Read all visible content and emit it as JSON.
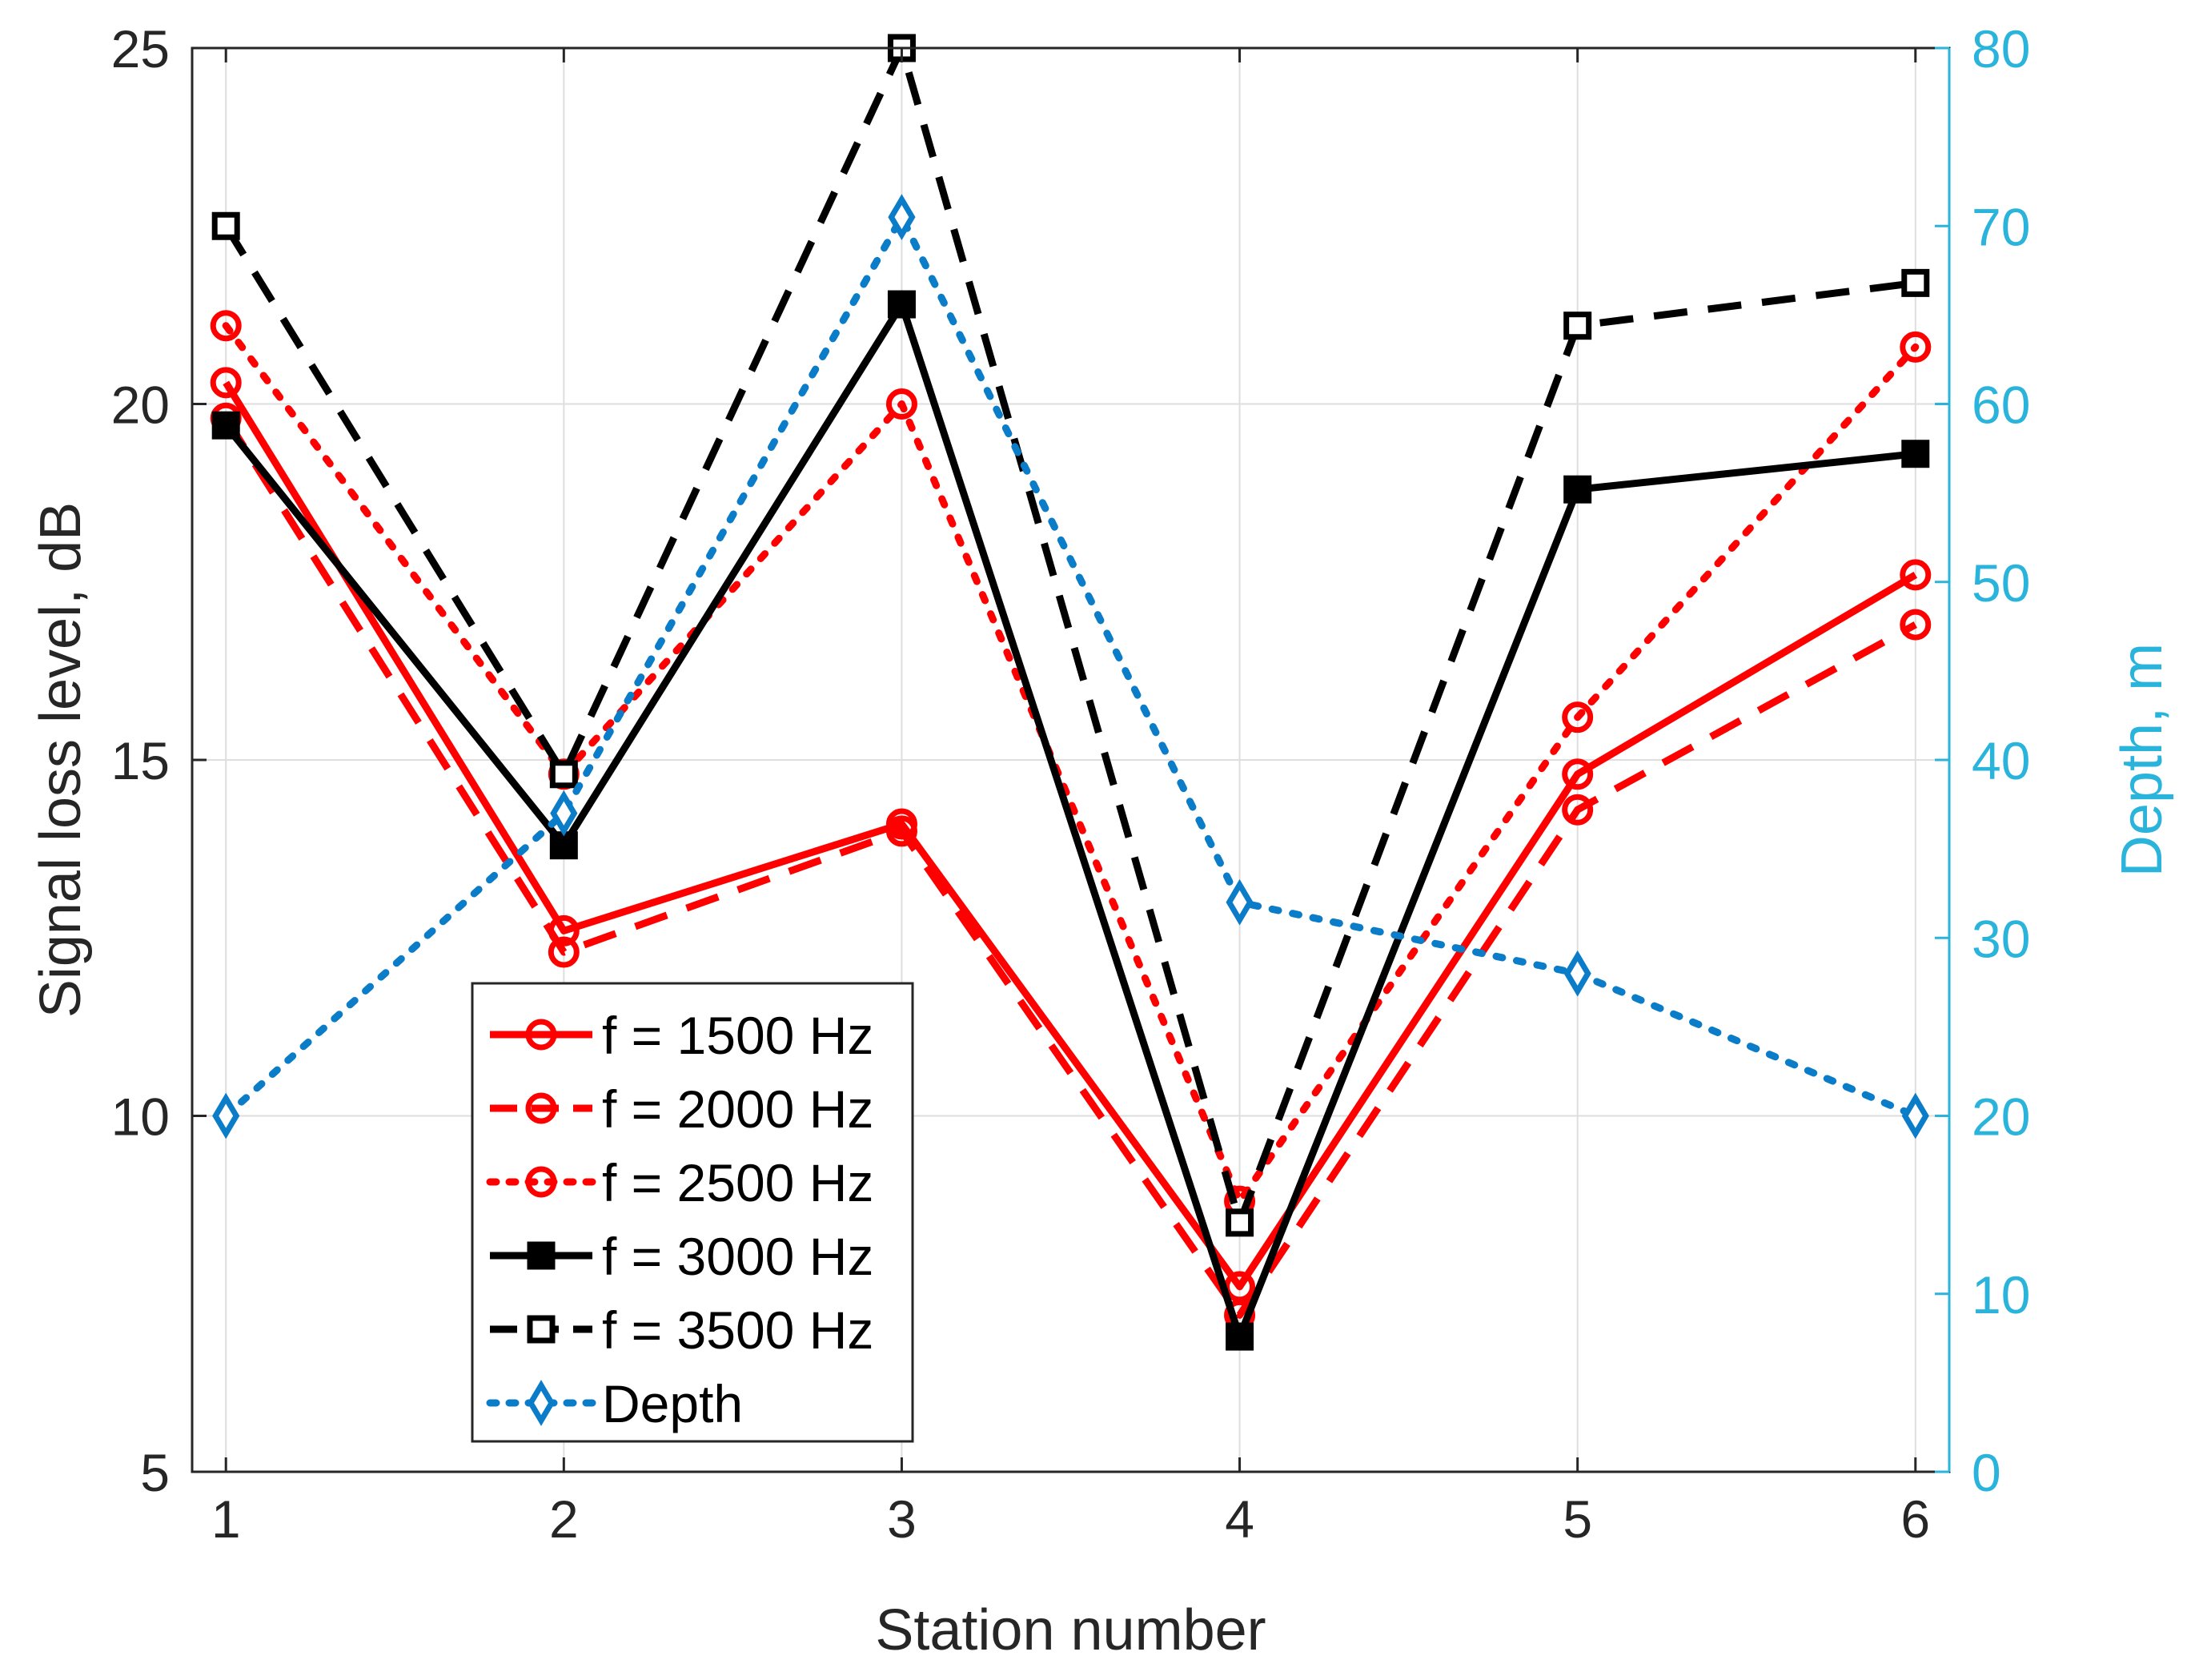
{
  "chart_data": {
    "type": "line",
    "x": [
      1,
      2,
      3,
      4,
      5,
      6
    ],
    "xlabel": "Station number",
    "ylabel": "Signal loss level, dB",
    "ylabel_right": "Depth, m",
    "xlim": [
      0.9,
      6.1
    ],
    "ylim": [
      5,
      25
    ],
    "ylim_right": [
      0,
      80
    ],
    "xticks": [
      "1",
      "2",
      "3",
      "4",
      "5",
      "6"
    ],
    "yticks": [
      "5",
      "10",
      "15",
      "20",
      "25"
    ],
    "yticks_right": [
      "0",
      "10",
      "20",
      "30",
      "40",
      "50",
      "60",
      "70",
      "80"
    ],
    "grid": true,
    "legend_position": "lower-left",
    "right_axis_color": "#2ab4dc",
    "series": [
      {
        "name": "f = 1500 Hz",
        "axis": "left",
        "color": "#ff0000",
        "dash": "solid",
        "marker": "circle",
        "values": [
          20.3,
          12.6,
          14.1,
          7.6,
          14.8,
          17.6
        ]
      },
      {
        "name": "f = 2000 Hz",
        "axis": "left",
        "color": "#ff0000",
        "dash": "dashed",
        "marker": "circle",
        "values": [
          19.8,
          12.3,
          14.0,
          7.2,
          14.3,
          16.9
        ]
      },
      {
        "name": "f = 2500 Hz",
        "axis": "left",
        "color": "#ff0000",
        "dash": "dotted",
        "marker": "circle",
        "values": [
          21.1,
          14.8,
          20.0,
          8.8,
          15.6,
          20.8
        ]
      },
      {
        "name": "f = 3000 Hz",
        "axis": "left",
        "color": "#000000",
        "dash": "solid",
        "marker": "filled-square",
        "values": [
          19.7,
          13.8,
          21.4,
          6.9,
          18.8,
          19.3
        ]
      },
      {
        "name": "f = 3500 Hz",
        "axis": "left",
        "color": "#000000",
        "dash": "dashed",
        "marker": "square",
        "values": [
          22.5,
          14.8,
          25.0,
          8.5,
          21.1,
          21.7
        ]
      },
      {
        "name": "Depth",
        "axis": "right",
        "color": "#0a7cc8",
        "dash": "dotted",
        "marker": "diamond",
        "values": [
          20,
          37,
          70.5,
          32,
          28,
          20
        ]
      }
    ]
  }
}
